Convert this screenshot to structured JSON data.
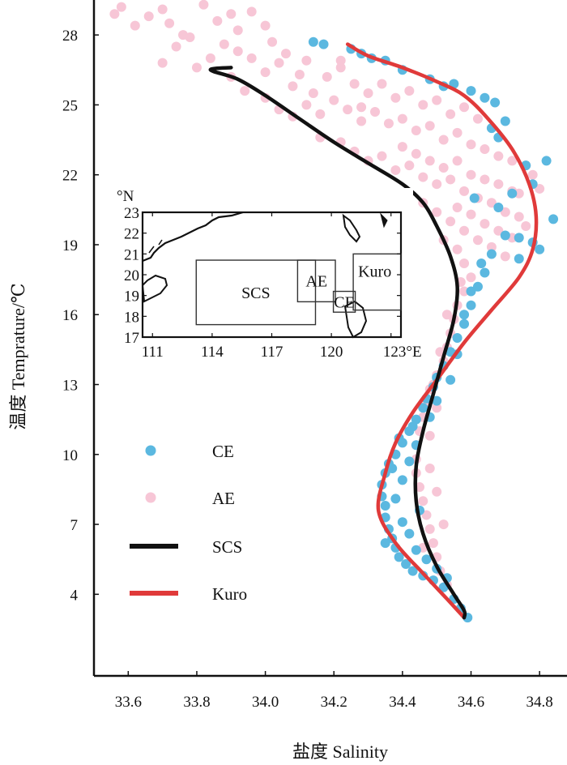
{
  "chart_data": {
    "type": "scatter",
    "xlabel": "盐度 Salinity",
    "ylabel": "温度 Temprature/℃",
    "xlim": [
      33.5,
      34.88
    ],
    "ylim": [
      0.5,
      29.5
    ],
    "x_ticks": [
      "33.6",
      "33.8",
      "34.0",
      "34.2",
      "34.4",
      "34.6",
      "34.8"
    ],
    "y_ticks": [
      "4",
      "7",
      "10",
      "13",
      "16",
      "19",
      "22",
      "25",
      "28"
    ],
    "grid": false,
    "legend_position": "left-bottom",
    "colors": {
      "CE": "#5bb8e0",
      "AE": "#f7c6d6",
      "SCS": "#111111",
      "Kuro": "#e03a3a"
    },
    "series": [
      {
        "name": "CE",
        "kind": "points",
        "points": [
          [
            34.59,
            3.0
          ],
          [
            34.57,
            3.4
          ],
          [
            34.55,
            3.8
          ],
          [
            34.52,
            4.3
          ],
          [
            34.49,
            4.6
          ],
          [
            34.46,
            4.8
          ],
          [
            34.43,
            5.0
          ],
          [
            34.41,
            5.3
          ],
          [
            34.39,
            5.6
          ],
          [
            34.38,
            6.0
          ],
          [
            34.37,
            6.4
          ],
          [
            34.36,
            6.8
          ],
          [
            34.35,
            7.3
          ],
          [
            34.35,
            7.8
          ],
          [
            34.34,
            8.2
          ],
          [
            34.34,
            8.7
          ],
          [
            34.35,
            9.2
          ],
          [
            34.36,
            9.6
          ],
          [
            34.38,
            10.0
          ],
          [
            34.4,
            10.5
          ],
          [
            34.42,
            11.0
          ],
          [
            34.44,
            11.5
          ],
          [
            34.46,
            12.0
          ],
          [
            34.47,
            12.4
          ],
          [
            34.49,
            12.9
          ],
          [
            34.5,
            13.3
          ],
          [
            34.52,
            13.8
          ],
          [
            34.54,
            14.4
          ],
          [
            34.56,
            15.0
          ],
          [
            34.58,
            15.6
          ],
          [
            34.6,
            16.4
          ],
          [
            34.62,
            17.2
          ],
          [
            34.64,
            17.8
          ],
          [
            34.66,
            18.6
          ],
          [
            34.7,
            19.4
          ],
          [
            34.74,
            19.3
          ],
          [
            34.78,
            19.1
          ],
          [
            34.8,
            18.8
          ],
          [
            34.84,
            20.1
          ],
          [
            34.82,
            22.6
          ],
          [
            34.78,
            21.6
          ],
          [
            34.72,
            21.2
          ],
          [
            34.7,
            24.3
          ],
          [
            34.67,
            25.1
          ],
          [
            34.64,
            25.3
          ],
          [
            34.6,
            25.6
          ],
          [
            34.55,
            25.9
          ],
          [
            34.52,
            25.8
          ],
          [
            34.48,
            26.1
          ],
          [
            34.4,
            26.5
          ],
          [
            34.35,
            26.9
          ],
          [
            34.31,
            27.0
          ],
          [
            34.28,
            27.2
          ],
          [
            34.25,
            27.4
          ],
          [
            34.17,
            27.6
          ],
          [
            34.14,
            27.7
          ],
          [
            34.68,
            23.6
          ],
          [
            34.76,
            22.4
          ],
          [
            34.66,
            24.0
          ],
          [
            34.54,
            13.2
          ],
          [
            34.5,
            12.3
          ],
          [
            34.48,
            11.6
          ],
          [
            34.44,
            10.4
          ],
          [
            34.42,
            9.7
          ],
          [
            34.4,
            8.9
          ],
          [
            34.38,
            8.1
          ],
          [
            34.4,
            7.1
          ],
          [
            34.42,
            6.6
          ],
          [
            34.44,
            5.9
          ],
          [
            34.47,
            5.5
          ],
          [
            34.5,
            5.1
          ],
          [
            34.53,
            4.7
          ],
          [
            34.45,
            7.6
          ],
          [
            34.37,
            9.4
          ],
          [
            34.39,
            10.7
          ],
          [
            34.43,
            11.2
          ],
          [
            34.35,
            6.2
          ],
          [
            34.58,
            16.0
          ],
          [
            34.63,
            18.2
          ],
          [
            34.6,
            17.0
          ],
          [
            34.68,
            20.6
          ],
          [
            34.74,
            18.4
          ],
          [
            34.61,
            21.0
          ],
          [
            34.56,
            14.3
          ]
        ]
      },
      {
        "name": "AE",
        "kind": "points",
        "points": [
          [
            33.56,
            28.9
          ],
          [
            33.58,
            29.2
          ],
          [
            33.62,
            28.4
          ],
          [
            33.66,
            28.8
          ],
          [
            33.7,
            29.1
          ],
          [
            33.72,
            28.5
          ],
          [
            33.76,
            28.0
          ],
          [
            33.82,
            29.3
          ],
          [
            33.86,
            28.6
          ],
          [
            33.9,
            28.9
          ],
          [
            33.96,
            29.0
          ],
          [
            34.0,
            28.4
          ],
          [
            33.7,
            26.8
          ],
          [
            33.74,
            27.5
          ],
          [
            33.78,
            27.9
          ],
          [
            33.8,
            26.6
          ],
          [
            33.84,
            27.0
          ],
          [
            33.88,
            27.6
          ],
          [
            33.92,
            27.3
          ],
          [
            33.96,
            27.0
          ],
          [
            34.0,
            26.4
          ],
          [
            34.04,
            26.8
          ],
          [
            34.08,
            25.8
          ],
          [
            34.1,
            26.3
          ],
          [
            33.9,
            26.2
          ],
          [
            33.94,
            25.6
          ],
          [
            34.0,
            25.3
          ],
          [
            34.04,
            24.8
          ],
          [
            34.08,
            24.5
          ],
          [
            34.12,
            25.0
          ],
          [
            34.16,
            24.6
          ],
          [
            34.2,
            25.2
          ],
          [
            34.24,
            24.8
          ],
          [
            34.28,
            24.3
          ],
          [
            34.32,
            24.7
          ],
          [
            34.36,
            24.2
          ],
          [
            34.4,
            24.4
          ],
          [
            34.44,
            23.9
          ],
          [
            34.48,
            24.1
          ],
          [
            34.52,
            23.5
          ],
          [
            34.56,
            23.8
          ],
          [
            34.6,
            23.3
          ],
          [
            34.64,
            23.1
          ],
          [
            34.68,
            22.8
          ],
          [
            34.72,
            22.6
          ],
          [
            34.76,
            22.4
          ],
          [
            34.78,
            22.0
          ],
          [
            34.16,
            23.6
          ],
          [
            34.22,
            23.4
          ],
          [
            34.26,
            23.0
          ],
          [
            34.3,
            22.6
          ],
          [
            34.34,
            22.8
          ],
          [
            34.38,
            22.2
          ],
          [
            34.42,
            22.4
          ],
          [
            34.46,
            21.9
          ],
          [
            34.5,
            21.6
          ],
          [
            34.54,
            21.8
          ],
          [
            34.58,
            21.3
          ],
          [
            34.62,
            21.0
          ],
          [
            34.66,
            20.8
          ],
          [
            34.7,
            20.4
          ],
          [
            34.74,
            20.2
          ],
          [
            34.76,
            19.8
          ],
          [
            34.46,
            20.8
          ],
          [
            34.5,
            20.4
          ],
          [
            34.54,
            20.0
          ],
          [
            34.58,
            19.6
          ],
          [
            34.62,
            19.2
          ],
          [
            34.66,
            18.9
          ],
          [
            34.7,
            18.5
          ],
          [
            34.56,
            18.8
          ],
          [
            34.58,
            18.2
          ],
          [
            34.6,
            17.6
          ],
          [
            34.58,
            17.0
          ],
          [
            34.56,
            16.4
          ],
          [
            34.55,
            15.8
          ],
          [
            34.54,
            15.2
          ],
          [
            34.53,
            14.6
          ],
          [
            34.52,
            14.0
          ],
          [
            34.5,
            13.4
          ],
          [
            34.48,
            12.8
          ],
          [
            34.47,
            12.2
          ],
          [
            34.46,
            11.6
          ],
          [
            34.45,
            11.0
          ],
          [
            34.44,
            10.4
          ],
          [
            34.44,
            9.8
          ],
          [
            34.44,
            9.2
          ],
          [
            34.45,
            8.6
          ],
          [
            34.46,
            8.0
          ],
          [
            34.47,
            7.4
          ],
          [
            34.48,
            6.8
          ],
          [
            34.49,
            6.2
          ],
          [
            34.5,
            5.6
          ],
          [
            34.51,
            5.0
          ],
          [
            34.53,
            4.4
          ],
          [
            34.55,
            3.8
          ],
          [
            34.57,
            3.4
          ],
          [
            33.92,
            28.2
          ],
          [
            34.02,
            27.7
          ],
          [
            34.06,
            27.2
          ],
          [
            34.12,
            26.9
          ],
          [
            34.18,
            26.2
          ],
          [
            34.22,
            26.6
          ],
          [
            34.26,
            25.9
          ],
          [
            34.3,
            25.5
          ],
          [
            34.34,
            25.9
          ],
          [
            34.38,
            25.3
          ],
          [
            34.42,
            25.6
          ],
          [
            34.46,
            25.0
          ],
          [
            34.5,
            25.2
          ],
          [
            34.54,
            24.6
          ],
          [
            34.58,
            24.9
          ],
          [
            34.62,
            24.4
          ],
          [
            34.4,
            23.2
          ],
          [
            34.44,
            22.9
          ],
          [
            34.48,
            22.6
          ],
          [
            34.52,
            22.3
          ],
          [
            34.56,
            22.6
          ],
          [
            34.6,
            22.0
          ],
          [
            34.64,
            21.8
          ],
          [
            34.68,
            21.6
          ],
          [
            34.72,
            21.3
          ],
          [
            34.52,
            19.2
          ],
          [
            34.56,
            20.6
          ],
          [
            34.6,
            20.3
          ],
          [
            34.64,
            19.9
          ],
          [
            34.68,
            19.6
          ],
          [
            34.72,
            19.3
          ],
          [
            34.74,
            21.2
          ],
          [
            34.8,
            21.4
          ],
          [
            34.48,
            10.8
          ],
          [
            34.48,
            9.4
          ],
          [
            34.5,
            8.4
          ],
          [
            34.52,
            7.0
          ],
          [
            34.46,
            6.0
          ],
          [
            34.5,
            12.0
          ],
          [
            34.49,
            13.0
          ],
          [
            34.51,
            14.4
          ],
          [
            34.53,
            16.0
          ],
          [
            34.57,
            17.4
          ],
          [
            34.22,
            26.9
          ],
          [
            34.14,
            25.5
          ],
          [
            34.28,
            24.9
          ]
        ]
      },
      {
        "name": "SCS",
        "kind": "line",
        "points": [
          [
            33.9,
            26.6
          ],
          [
            33.84,
            26.5
          ],
          [
            33.92,
            26.1
          ],
          [
            34.0,
            25.4
          ],
          [
            34.1,
            24.4
          ],
          [
            34.2,
            23.4
          ],
          [
            34.3,
            22.5
          ],
          [
            34.4,
            21.6
          ],
          [
            34.46,
            20.8
          ],
          [
            34.5,
            19.8
          ],
          [
            34.54,
            18.5
          ],
          [
            34.56,
            17.2
          ],
          [
            34.55,
            15.8
          ],
          [
            34.52,
            14.2
          ],
          [
            34.49,
            12.6
          ],
          [
            34.46,
            11.0
          ],
          [
            34.44,
            9.5
          ],
          [
            34.44,
            8.0
          ],
          [
            34.46,
            6.6
          ],
          [
            34.5,
            5.2
          ],
          [
            34.55,
            4.0
          ],
          [
            34.58,
            3.3
          ],
          [
            34.58,
            3.0
          ]
        ]
      },
      {
        "name": "Kuro",
        "kind": "line",
        "points": [
          [
            34.24,
            27.6
          ],
          [
            34.3,
            27.1
          ],
          [
            34.4,
            26.6
          ],
          [
            34.5,
            26.0
          ],
          [
            34.58,
            25.4
          ],
          [
            34.65,
            24.4
          ],
          [
            34.72,
            23.1
          ],
          [
            34.77,
            21.6
          ],
          [
            34.79,
            20.2
          ],
          [
            34.78,
            18.8
          ],
          [
            34.74,
            17.6
          ],
          [
            34.66,
            16.2
          ],
          [
            34.58,
            14.8
          ],
          [
            34.5,
            13.2
          ],
          [
            34.43,
            11.8
          ],
          [
            34.38,
            10.5
          ],
          [
            34.35,
            9.2
          ],
          [
            34.33,
            7.6
          ],
          [
            34.38,
            6.2
          ],
          [
            34.46,
            4.9
          ],
          [
            34.53,
            3.8
          ],
          [
            34.58,
            3.0
          ]
        ]
      }
    ],
    "legend": [
      {
        "name": "CE",
        "style": "dot"
      },
      {
        "name": "AE",
        "style": "dot"
      },
      {
        "name": "SCS",
        "style": "line"
      },
      {
        "name": "Kuro",
        "style": "line"
      }
    ],
    "inset_map": {
      "lon_ticks": [
        "111",
        "114",
        "117",
        "120",
        "123°E"
      ],
      "lat_ticks": [
        "17",
        "18",
        "19",
        "20",
        "21",
        "22",
        "23"
      ],
      "lat_unit": "°N",
      "lon_range": [
        110.5,
        123.5
      ],
      "lat_range": [
        17,
        23
      ],
      "regions": [
        {
          "label": "SCS",
          "lon": [
            113.2,
            119.2
          ],
          "lat": [
            17.6,
            20.7
          ]
        },
        {
          "label": "AE",
          "lon": [
            118.3,
            120.2
          ],
          "lat": [
            18.7,
            20.7
          ]
        },
        {
          "label": "CE",
          "lon": [
            120.1,
            121.2
          ],
          "lat": [
            18.2,
            19.2
          ]
        },
        {
          "label": "Kuro",
          "lon": [
            121.1,
            123.5
          ],
          "lat": [
            18.3,
            21.0
          ]
        }
      ]
    }
  }
}
